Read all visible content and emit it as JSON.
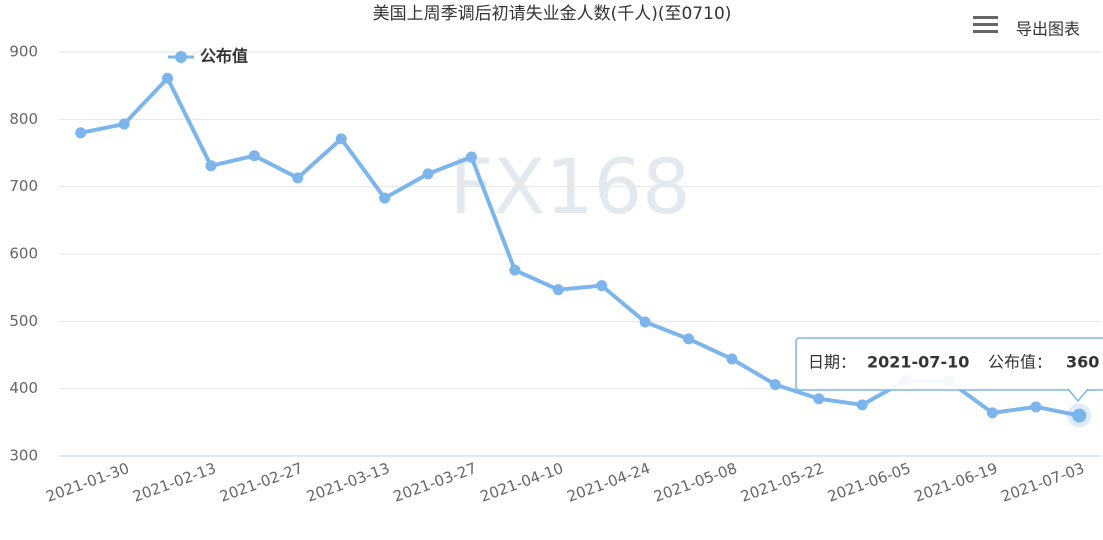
{
  "chart_data": {
    "type": "line",
    "title": "美国上周季调后初请失业金人数(千人)(至0710)",
    "watermark": "FX168",
    "export_label": "导出图表",
    "categories": [
      "2021-01-30",
      null,
      "2021-02-13",
      null,
      "2021-02-27",
      null,
      "2021-03-13",
      null,
      "2021-03-27",
      null,
      "2021-04-10",
      null,
      "2021-04-24",
      null,
      "2021-05-08",
      null,
      "2021-05-22",
      null,
      "2021-06-05",
      null,
      "2021-06-19",
      null,
      "2021-07-03",
      "2021-07-10"
    ],
    "series": [
      {
        "name": "公布值",
        "color": "#7cb5ec",
        "values": [
          780,
          793,
          861,
          731,
          746,
          713,
          771,
          683,
          719,
          744,
          576,
          547,
          553,
          499,
          474,
          444,
          406,
          385,
          376,
          412,
          411,
          364,
          373,
          360
        ]
      }
    ],
    "ylim": [
      300,
      900
    ],
    "yticks": [
      300,
      400,
      500,
      600,
      700,
      800,
      900
    ],
    "grid": true,
    "legend": "top-left",
    "tooltip": {
      "date_label": "日期：",
      "value_label": "公布值："
    }
  }
}
